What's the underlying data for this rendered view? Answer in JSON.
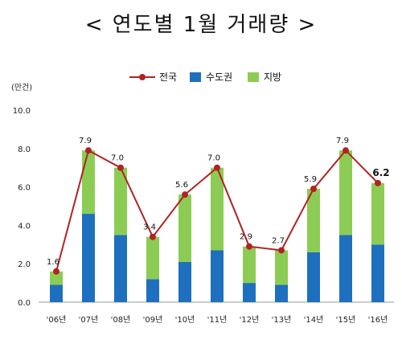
{
  "chart_data": {
    "type": "bar",
    "title": "< 연도별 1월 거래량 >",
    "unit_label": "(만건)",
    "categories": [
      "'06년",
      "'07년",
      "'08년",
      "'09년",
      "'10년",
      "'11년",
      "'12년",
      "'13년",
      "'14년",
      "'15년",
      "'16년"
    ],
    "ylim": [
      0,
      10
    ],
    "yticks": [
      "0.0",
      "2.0",
      "4.0",
      "6.0",
      "8.0",
      "10.0"
    ],
    "stacked": true,
    "series": [
      {
        "name": "수도권",
        "kind": "bar",
        "color": "#1f6fbf",
        "values": [
          0.9,
          4.6,
          3.5,
          1.2,
          2.1,
          2.7,
          1.0,
          0.9,
          2.6,
          3.5,
          3.0
        ]
      },
      {
        "name": "지방",
        "kind": "bar",
        "color": "#8ccc55",
        "values": [
          0.7,
          3.3,
          3.5,
          2.2,
          3.5,
          4.3,
          1.9,
          1.8,
          3.3,
          4.4,
          3.2
        ]
      },
      {
        "name": "전국",
        "kind": "line",
        "color": "#b22222",
        "values": [
          1.6,
          7.9,
          7.0,
          3.4,
          5.6,
          7.0,
          2.9,
          2.7,
          5.9,
          7.9,
          6.2
        ]
      }
    ],
    "data_labels": [
      "1.6",
      "7.9",
      "7.0",
      "3.4",
      "5.6",
      "7.0",
      "2.9",
      "2.7",
      "5.9",
      "7.9",
      "6.2"
    ],
    "legend_position": "top-center",
    "grid": false
  }
}
